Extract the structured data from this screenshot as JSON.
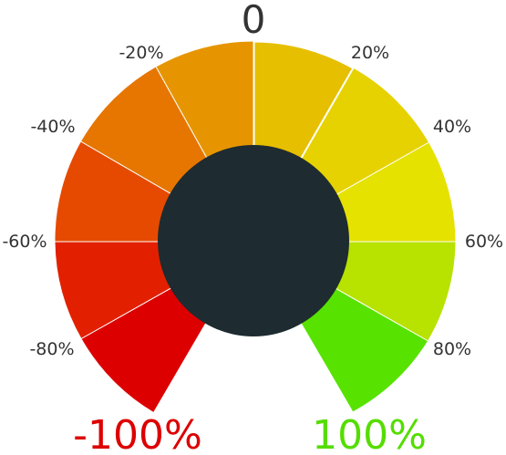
{
  "gauge": {
    "center_label": "0",
    "colors": {
      "segment_stroke": "#ffffff",
      "hub": "#1e2b30",
      "tick_text": "#333333",
      "end_low": "#dd0000",
      "end_high": "#55dd00"
    },
    "segments": [
      {
        "range": "0 to 20%",
        "color": "#e6bf00"
      },
      {
        "range": "20% to 40%",
        "color": "#e6d200"
      },
      {
        "range": "40% to 60%",
        "color": "#e6e200"
      },
      {
        "range": "60% to 80%",
        "color": "#b8e200"
      },
      {
        "range": "80% to 100%",
        "color": "#58e200"
      },
      {
        "range": "-80% to -100%",
        "color": "#dd0000"
      },
      {
        "range": "-60% to -80%",
        "color": "#e22000"
      },
      {
        "range": "-40% to -60%",
        "color": "#e64a00"
      },
      {
        "range": "-20% to -40%",
        "color": "#e67600"
      },
      {
        "range": "0 to -20%",
        "color": "#e69500"
      }
    ],
    "tick_labels": [
      "-20%",
      "20%",
      "-40%",
      "40%",
      "-60%",
      "60%",
      "-80%",
      "80%"
    ],
    "end_labels": {
      "low": "-100%",
      "high": "100%"
    }
  }
}
